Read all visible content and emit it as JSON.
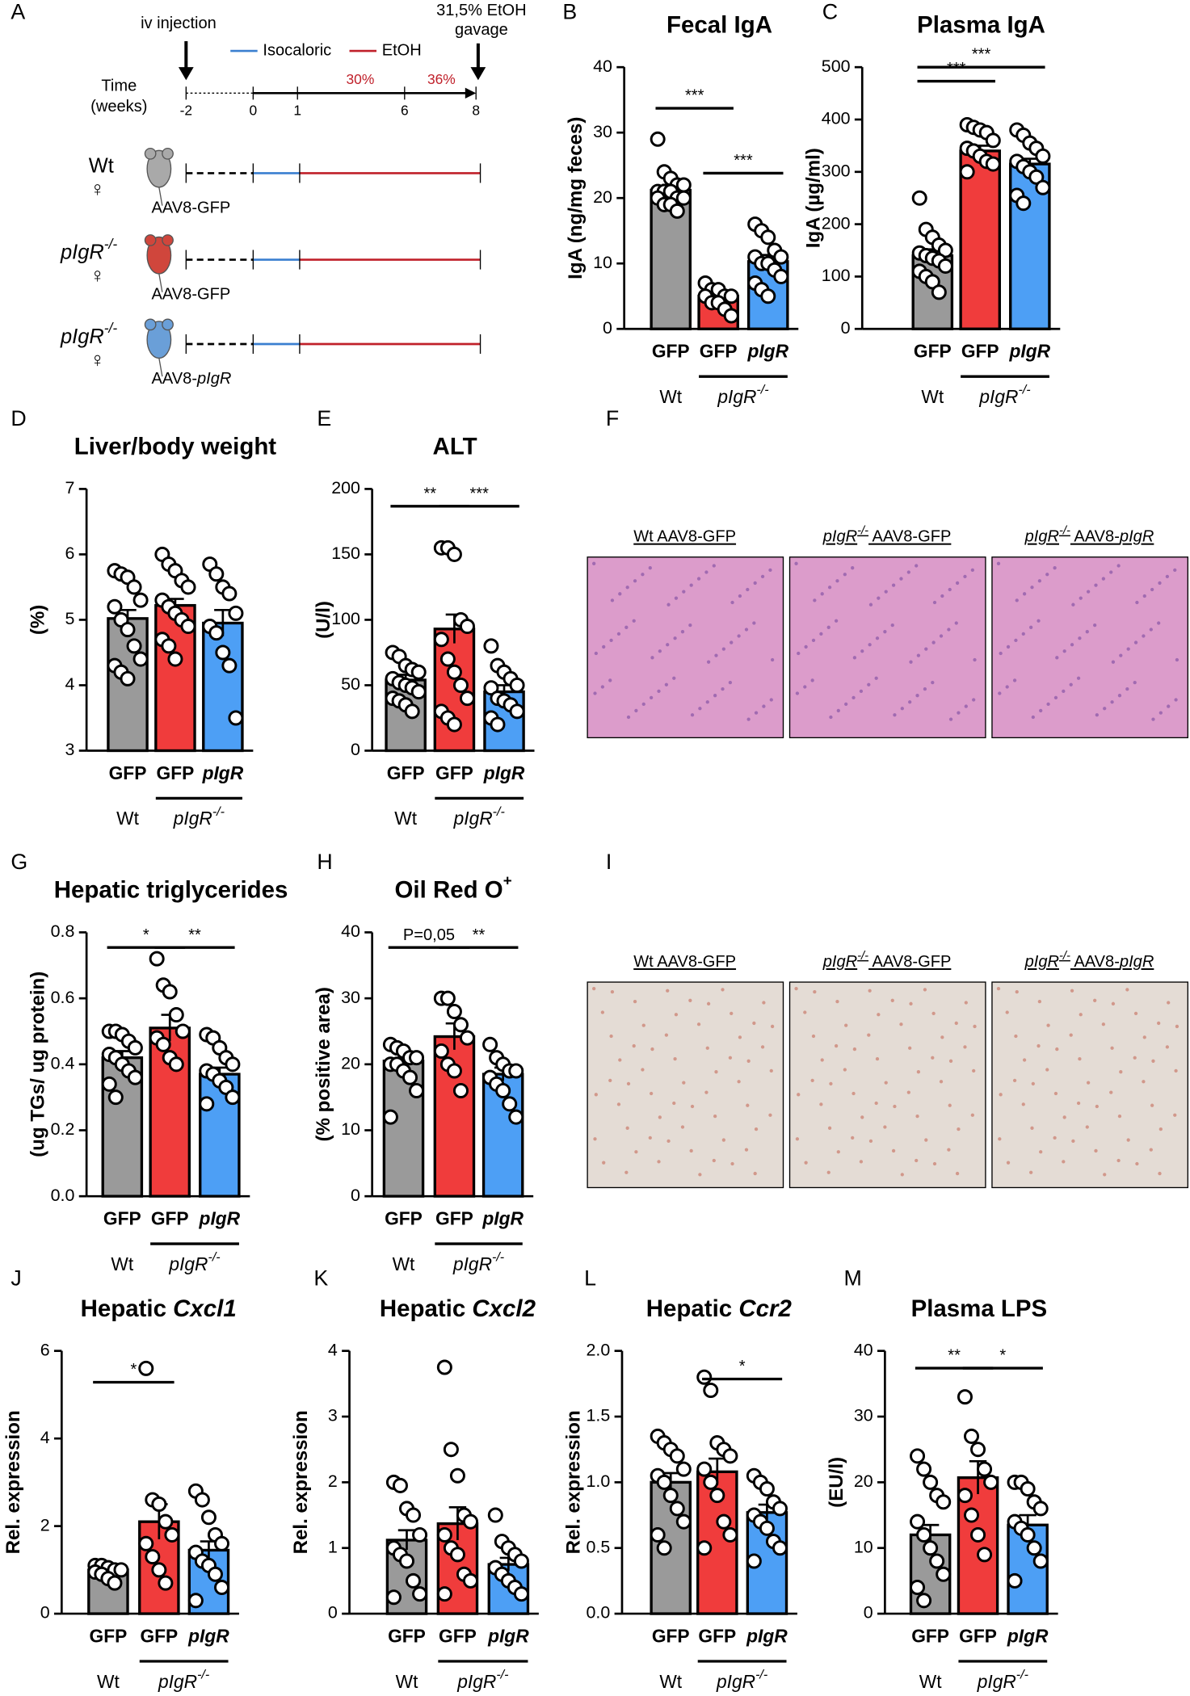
{
  "panel_letters": [
    "A",
    "B",
    "C",
    "D",
    "E",
    "F",
    "G",
    "H",
    "I",
    "J",
    "K",
    "L",
    "M"
  ],
  "diagram": {
    "iv_injection": "iv injection",
    "gavage": [
      "31,5% EtOH",
      "gavage"
    ],
    "legend": [
      "Isocaloric",
      "EtOH"
    ],
    "time_label": [
      "Time",
      "(weeks)"
    ],
    "weeks": [
      "-2",
      "0",
      "1",
      "6",
      "8"
    ],
    "percents": [
      "30%",
      "36%"
    ],
    "rows": [
      {
        "genotype": "Wt",
        "sex": "♀",
        "vector": [
          "AAV8-GFP"
        ]
      },
      {
        "genotype": "pIgR",
        "genotype_sup": "-/-",
        "sex": "♀",
        "vector": [
          "AAV8-GFP"
        ]
      },
      {
        "genotype": "pIgR",
        "genotype_sup": "-/-",
        "sex": "♀",
        "vector": [
          "AAV8-",
          "pIgR"
        ]
      }
    ]
  },
  "histology": {
    "F": [
      [
        "Wt AAV8-GFP"
      ],
      [
        "pIgR",
        "-/-",
        " AAV8-GFP"
      ],
      [
        "pIgR",
        "-/-",
        " AAV8-",
        "pIgR"
      ]
    ],
    "I": [
      [
        "Wt AAV8-GFP"
      ],
      [
        "pIgR",
        "-/-",
        " AAV8-GFP"
      ],
      [
        "pIgR",
        "-/-",
        " AAV8-",
        "pIgR"
      ]
    ]
  },
  "chart_data": [
    {
      "type": "bar",
      "title": "Fecal IgA",
      "ylabel": "IgA (ng/mg feces)",
      "categories": [
        "GFP",
        "GFP",
        "pIgR"
      ],
      "colors": [
        "#9a9a9a",
        "#f03c3c",
        "#4d9ff5"
      ],
      "values": [
        21.2,
        5.0,
        10.3
      ],
      "errors": [
        0.8,
        0.6,
        1.0
      ],
      "points": [
        [
          29,
          24,
          23,
          22,
          22,
          21,
          21,
          21,
          20,
          20,
          20,
          19,
          19,
          18
        ],
        [
          7,
          6,
          6,
          5,
          5,
          5,
          4,
          4,
          3,
          2
        ],
        [
          16,
          15,
          14,
          12,
          11,
          11,
          10,
          10,
          9,
          8,
          7,
          6,
          5
        ]
      ],
      "ylim": [
        0,
        40
      ],
      "yticks": [
        0,
        10,
        20,
        30,
        40
      ],
      "group_labels": [
        "Wt",
        "pIgR"
      ],
      "group_sup": "-/-",
      "significance": [
        "***",
        "***"
      ]
    },
    {
      "type": "bar",
      "title": "Plasma IgA",
      "ylabel": "IgA (µg/ml)",
      "categories": [
        "GFP",
        "GFP",
        "pIgR"
      ],
      "colors": [
        "#9a9a9a",
        "#f03c3c",
        "#4d9ff5"
      ],
      "values": [
        140,
        340,
        315
      ],
      "errors": [
        12,
        10,
        10
      ],
      "points": [
        [
          250,
          190,
          175,
          160,
          150,
          145,
          140,
          135,
          130,
          120,
          110,
          100,
          90,
          70
        ],
        [
          390,
          385,
          380,
          375,
          360,
          345,
          340,
          330,
          320,
          315,
          300
        ],
        [
          380,
          370,
          355,
          345,
          330,
          320,
          310,
          300,
          290,
          270,
          255,
          240
        ]
      ],
      "ylim": [
        0,
        500
      ],
      "yticks": [
        0,
        100,
        200,
        300,
        400,
        500
      ],
      "group_labels": [
        "Wt",
        "pIgR"
      ],
      "group_sup": "-/-",
      "significance": [
        "***",
        "***"
      ]
    },
    {
      "type": "bar",
      "title": "Liver/body weight",
      "ylabel": "(%)",
      "categories": [
        "GFP",
        "GFP",
        "pIgR"
      ],
      "colors": [
        "#9a9a9a",
        "#f03c3c",
        "#4d9ff5"
      ],
      "values": [
        5.02,
        5.22,
        4.95
      ],
      "errors": [
        0.13,
        0.1,
        0.2
      ],
      "points": [
        [
          5.75,
          5.7,
          5.65,
          5.5,
          5.3,
          5.2,
          5.0,
          4.85,
          4.6,
          4.4,
          4.3,
          4.2,
          4.1
        ],
        [
          6.0,
          5.85,
          5.75,
          5.6,
          5.5,
          5.3,
          5.2,
          5.1,
          5.0,
          4.9,
          4.7,
          4.6,
          4.4
        ],
        [
          5.85,
          5.7,
          5.5,
          5.4,
          5.1,
          4.9,
          4.8,
          4.5,
          4.3,
          3.5
        ]
      ],
      "ylim": [
        3,
        7
      ],
      "yticks": [
        3,
        4,
        5,
        6,
        7
      ],
      "group_labels": [
        "Wt",
        "pIgR"
      ],
      "group_sup": "-/-",
      "significance": []
    },
    {
      "type": "bar",
      "title": "ALT",
      "ylabel": "(U/l)",
      "categories": [
        "GFP",
        "GFP",
        "pIgR"
      ],
      "colors": [
        "#9a9a9a",
        "#f03c3c",
        "#4d9ff5"
      ],
      "values": [
        54,
        93,
        45
      ],
      "errors": [
        4,
        11,
        5
      ],
      "points": [
        [
          75,
          72,
          65,
          62,
          60,
          55,
          52,
          50,
          48,
          45,
          40,
          38,
          35,
          30
        ],
        [
          155,
          155,
          150,
          100,
          95,
          85,
          70,
          60,
          50,
          40,
          30,
          25,
          20
        ],
        [
          80,
          65,
          60,
          55,
          50,
          48,
          40,
          38,
          35,
          30,
          25,
          20
        ]
      ],
      "ylim": [
        0,
        200
      ],
      "yticks": [
        0,
        50,
        100,
        150,
        200
      ],
      "group_labels": [
        "Wt",
        "pIgR"
      ],
      "group_sup": "-/-",
      "significance": [
        "**",
        "***"
      ]
    },
    {
      "type": "bar",
      "title": "Hepatic triglycerides",
      "ylabel": "(ug TGs/ ug protein)",
      "categories": [
        "GFP",
        "GFP",
        "pIgR"
      ],
      "colors": [
        "#9a9a9a",
        "#f03c3c",
        "#4d9ff5"
      ],
      "values": [
        0.42,
        0.51,
        0.37
      ],
      "errors": [
        0.02,
        0.04,
        0.02
      ],
      "points": [
        [
          0.5,
          0.5,
          0.49,
          0.47,
          0.45,
          0.43,
          0.42,
          0.4,
          0.38,
          0.36,
          0.34,
          0.3
        ],
        [
          0.72,
          0.64,
          0.62,
          0.55,
          0.5,
          0.48,
          0.46,
          0.42,
          0.4
        ],
        [
          0.49,
          0.48,
          0.45,
          0.42,
          0.4,
          0.38,
          0.37,
          0.35,
          0.33,
          0.3,
          0.28
        ]
      ],
      "ylim": [
        0,
        0.8
      ],
      "yticks": [
        {
          "value": 0,
          "label": "0.0"
        },
        0.2,
        0.4,
        0.6,
        0.8
      ],
      "group_labels": [
        "Wt",
        "pIgR"
      ],
      "group_sup": "-/-",
      "significance": [
        "*",
        "**"
      ]
    },
    {
      "type": "bar",
      "title": "Oil Red O",
      "title_sup": "+",
      "ylabel": "(% positive area)",
      "categories": [
        "GFP",
        "GFP",
        "pIgR"
      ],
      "colors": [
        "#9a9a9a",
        "#f03c3c",
        "#4d9ff5"
      ],
      "values": [
        20.5,
        24.2,
        18.5
      ],
      "errors": [
        1,
        2,
        1
      ],
      "points": [
        [
          23,
          22.5,
          22,
          21,
          21,
          20,
          20,
          19,
          18,
          16,
          12
        ],
        [
          30,
          30,
          28,
          26,
          24,
          22,
          20,
          19,
          16
        ],
        [
          23,
          21,
          20,
          19,
          19,
          18,
          17,
          16,
          14,
          12
        ]
      ],
      "ylim": [
        0,
        40
      ],
      "yticks": [
        0,
        10,
        20,
        30,
        40
      ],
      "group_labels": [
        "Wt",
        "pIgR"
      ],
      "group_sup": "-/-",
      "significance": [
        "P=0,05",
        "**"
      ]
    },
    {
      "type": "bar",
      "title": "Hepatic ",
      "title_italic": "Cxcl1",
      "ylabel": "Rel. expression",
      "categories": [
        "GFP",
        "GFP",
        "pIgR"
      ],
      "colors": [
        "#9a9a9a",
        "#f03c3c",
        "#4d9ff5"
      ],
      "values": [
        1.0,
        2.1,
        1.45
      ],
      "errors": [
        0.1,
        0.4,
        0.2
      ],
      "points": [
        [
          1.1,
          1.1,
          1.05,
          1.0,
          1.0,
          0.95,
          0.9,
          0.8,
          0.7
        ],
        [
          5.6,
          2.6,
          2.5,
          2.1,
          1.8,
          1.6,
          1.3,
          1.0,
          0.7
        ],
        [
          2.8,
          2.6,
          2.2,
          1.8,
          1.6,
          1.4,
          1.2,
          1.1,
          0.9,
          0.6,
          0.3
        ]
      ],
      "ylim": [
        0,
        6
      ],
      "yticks": [
        0,
        2,
        4,
        6
      ],
      "group_labels": [
        "Wt",
        "pIgR"
      ],
      "group_sup": "-/-",
      "significance": [
        "*"
      ]
    },
    {
      "type": "bar",
      "title": "Hepatic ",
      "title_italic": "Cxcl2",
      "ylabel": "Rel. expression",
      "categories": [
        "GFP",
        "GFP",
        "pIgR"
      ],
      "colors": [
        "#9a9a9a",
        "#f03c3c",
        "#4d9ff5"
      ],
      "values": [
        1.12,
        1.37,
        0.75
      ],
      "errors": [
        0.15,
        0.25,
        0.1
      ],
      "points": [
        [
          2.0,
          1.95,
          1.6,
          1.5,
          1.2,
          1.0,
          0.9,
          0.8,
          0.5,
          0.3,
          0.25
        ],
        [
          3.75,
          2.5,
          2.1,
          1.5,
          1.4,
          1.2,
          1.0,
          0.9,
          0.6,
          0.5,
          0.3
        ],
        [
          1.5,
          1.1,
          1.0,
          0.9,
          0.8,
          0.7,
          0.6,
          0.5,
          0.4,
          0.3
        ]
      ],
      "ylim": [
        0,
        4
      ],
      "yticks": [
        0,
        1,
        2,
        3,
        4
      ],
      "group_labels": [
        "Wt",
        "pIgR"
      ],
      "group_sup": "-/-",
      "significance": []
    },
    {
      "type": "bar",
      "title": "Hepatic ",
      "title_italic": "Ccr2",
      "ylabel": "Rel. expression",
      "categories": [
        "GFP",
        "GFP",
        "pIgR"
      ],
      "colors": [
        "#9a9a9a",
        "#f03c3c",
        "#4d9ff5"
      ],
      "values": [
        1.0,
        1.08,
        0.77
      ],
      "errors": [
        0.07,
        0.1,
        0.06
      ],
      "points": [
        [
          1.35,
          1.3,
          1.25,
          1.2,
          1.1,
          1.05,
          1.0,
          0.9,
          0.8,
          0.7,
          0.6,
          0.5
        ],
        [
          1.8,
          1.7,
          1.3,
          1.25,
          1.2,
          1.1,
          1.0,
          0.9,
          0.7,
          0.6,
          0.5
        ],
        [
          1.05,
          1.0,
          0.95,
          0.85,
          0.8,
          0.75,
          0.7,
          0.65,
          0.55,
          0.5,
          0.4
        ]
      ],
      "ylim": [
        0,
        2
      ],
      "yticks": [
        {
          "value": 0,
          "label": "0.0"
        },
        0.5,
        {
          "value": 1,
          "label": "1.0"
        },
        1.5,
        {
          "value": 2,
          "label": "2.0"
        }
      ],
      "group_labels": [
        "Wt",
        "pIgR"
      ],
      "group_sup": "-/-",
      "significance": [
        "*"
      ]
    },
    {
      "type": "bar",
      "title": "Plasma LPS",
      "ylabel": "(EU/l)",
      "categories": [
        "GFP",
        "GFP",
        "pIgR"
      ],
      "colors": [
        "#9a9a9a",
        "#f03c3c",
        "#4d9ff5"
      ],
      "values": [
        12,
        20.7,
        13.5
      ],
      "errors": [
        1.5,
        2.5,
        1.5
      ],
      "points": [
        [
          24,
          22,
          20,
          18,
          17,
          14,
          12,
          10,
          8,
          6,
          4,
          2
        ],
        [
          33,
          27,
          25,
          22,
          20,
          18,
          15,
          12,
          9
        ],
        [
          20,
          20,
          19,
          17,
          16,
          14,
          13,
          12,
          10,
          8,
          5
        ]
      ],
      "ylim": [
        0,
        40
      ],
      "yticks": [
        0,
        10,
        20,
        30,
        40
      ],
      "group_labels": [
        "Wt",
        "pIgR"
      ],
      "group_sup": "-/-",
      "significance": [
        "**",
        "*"
      ]
    }
  ]
}
